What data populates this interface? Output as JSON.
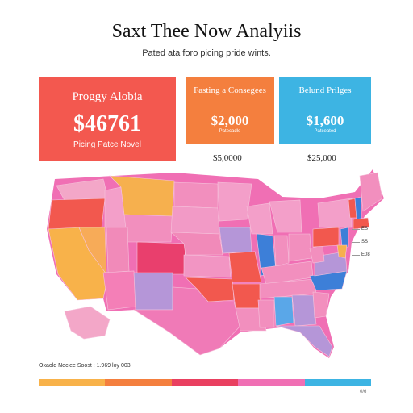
{
  "title": "Saxt Thee Now Analyiis",
  "subtitle": "Pated ata foro picing pride wints.",
  "cards": [
    {
      "title": "Proggy Alobia",
      "value": "$46761",
      "note": "Picing Patce Novel",
      "color": "#f3584f"
    },
    {
      "title": "Fasting a Consegees",
      "value": "$2,000",
      "note": "Patecadle",
      "color": "#f47f3e",
      "below": "$5,0000"
    },
    {
      "title": "Belund Prilges",
      "value": "$1,600",
      "note": "Patceated",
      "color": "#3db4e3",
      "below": "$25,000"
    }
  ],
  "map": {
    "base_color": "#f06fb4",
    "state_colors": {
      "Washington": "#f3a7c8",
      "Oregon": "#f2584e",
      "California": "#f8b24a",
      "Nevada": "#f7ab58",
      "Idaho": "#f39fc9",
      "Montana": "#f6b04e",
      "Wyoming": "#f28fbe",
      "Utah": "#f18ab9",
      "Arizona": "#f47fb7",
      "Colorado": "#e93f6d",
      "New Mexico": "#b596d8",
      "North Dakota": "#f28fbe",
      "South Dakota": "#f29ac6",
      "Nebraska": "#f18ab9",
      "Kansas": "#f295c3",
      "Oklahoma": "#f2584e",
      "Texas": "#f07ab7",
      "Minnesota": "#f39fc9",
      "Iowa": "#b596d8",
      "Missouri": "#f2584e",
      "Arkansas": "#f2584e",
      "Louisiana": "#f28fbe",
      "Wisconsin": "#f39fc9",
      "Illinois": "#3d7fd8",
      "Michigan": "#f39fc9",
      "Indiana": "#f28fbe",
      "Ohio": "#f28fbe",
      "Kentucky": "#f28fbe",
      "Tennessee": "#f28fbe",
      "Mississippi": "#f28fbe",
      "Alabama": "#5aa7e8",
      "Georgia": "#b596d8",
      "Florida": "#b596d8",
      "South Carolina": "#f28fbe",
      "North Carolina": "#3d7fd8",
      "Virginia": "#b596d8",
      "West Virginia": "#f28fbe",
      "Pennsylvania": "#f2584e",
      "New York": "#f39fc9",
      "Maine": "#f28fbe",
      "Vermont": "#f2584e",
      "New Hampshire": "#3d7fd8",
      "Massachusetts": "#f2584e",
      "New Jersey": "#3d7fd8",
      "Maryland": "#f6b04e",
      "Alaska": "#f3a7c8"
    },
    "side_labels": [
      "ES",
      "SS",
      "E08"
    ]
  },
  "footer": {
    "text": "Oxaold Neclee Soost : 1.969 loy 003",
    "bar_colors": [
      "#f8b24a",
      "#f47f3e",
      "#e94060",
      "#f06fb4",
      "#3db4e3"
    ],
    "tiny": "0/6"
  }
}
